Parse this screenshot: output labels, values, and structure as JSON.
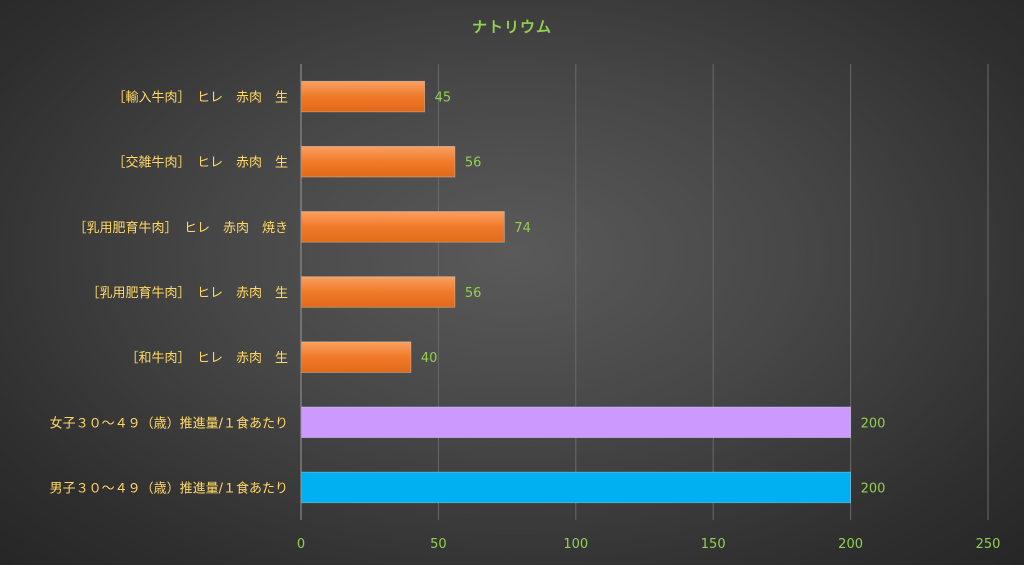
{
  "chart_data": {
    "type": "bar",
    "orientation": "horizontal",
    "title": "ナトリウム",
    "categories": [
      "［輸入牛肉］　ヒレ　赤肉　生",
      "［交雑牛肉］　ヒレ　赤肉　生",
      "［乳用肥育牛肉］　ヒレ　赤肉　焼き",
      "［乳用肥育牛肉］　ヒレ　赤肉　生",
      "［和牛肉］　ヒレ　赤肉　生",
      "女子３０～４９（歳）推進量/１食あたり",
      "男子３０～４９（歳）推進量/１食あたり"
    ],
    "values": [
      45,
      56,
      74,
      56,
      40,
      200,
      200
    ],
    "value_labels": [
      "45",
      "56",
      "74",
      "56",
      "40",
      "200",
      "200"
    ],
    "colors": [
      "#f07a2a",
      "#f07a2a",
      "#f07a2a",
      "#f07a2a",
      "#f07a2a",
      "#cc99ff",
      "#00b0f0"
    ],
    "xlim": [
      0,
      250
    ],
    "ticks": [
      0,
      50,
      100,
      150,
      200,
      250
    ],
    "tick_labels": [
      "0",
      "50",
      "100",
      "150",
      "200",
      "250"
    ],
    "grid": true,
    "legend": "none"
  }
}
